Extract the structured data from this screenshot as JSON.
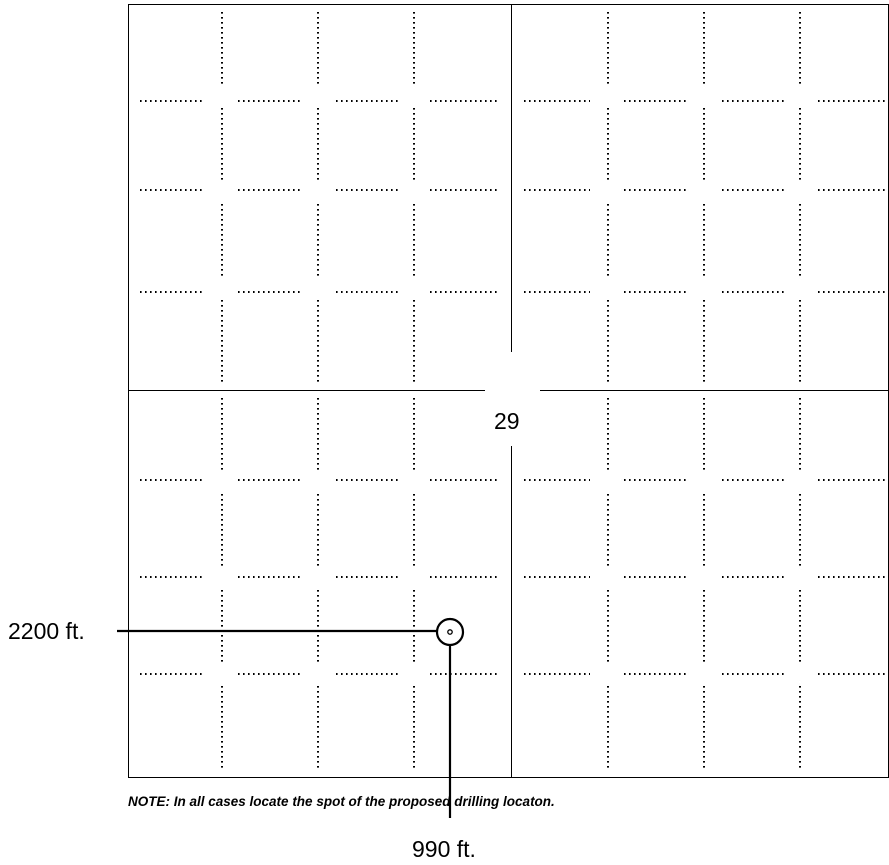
{
  "section": {
    "number": "29"
  },
  "callouts": {
    "east_west_distance": "2200 ft.",
    "north_south_distance": "990 ft."
  },
  "note": {
    "text": "NOTE: In all cases locate the spot of the proposed drilling locaton."
  },
  "colors": {
    "line": "#000000",
    "background": "#ffffff"
  }
}
